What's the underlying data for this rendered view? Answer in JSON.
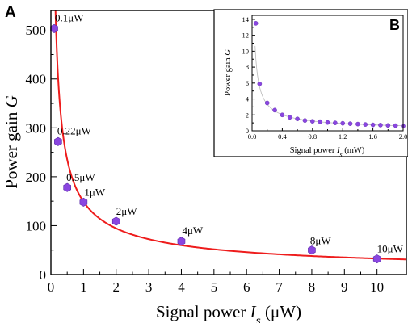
{
  "panel_labels": {
    "main": "A",
    "inset": "B"
  },
  "colors": {
    "fit_line": "#ee1c1c",
    "marker": "#8a46e0",
    "marker_edge": "#5b2aa8",
    "inset_fit": "#b9b9b9",
    "axes": "#000000"
  },
  "chart_data": [
    {
      "type": "scatter",
      "panel": "A",
      "xlabel": "Signal power I_s (μW)",
      "ylabel": "Power gain G",
      "xlim": [
        0,
        10.9
      ],
      "ylim": [
        0,
        540
      ],
      "xticks": [
        "0",
        "1",
        "2",
        "3",
        "4",
        "5",
        "6",
        "7",
        "8",
        "9",
        "10"
      ],
      "yticks": [
        "0",
        "100",
        "200",
        "300",
        "400",
        "500"
      ],
      "marker": "hexagon",
      "series": [
        {
          "x": [
            0.1,
            0.22,
            0.5,
            1,
            2,
            4,
            8,
            10
          ],
          "y": [
            503,
            272,
            178,
            148,
            109,
            68,
            50,
            32
          ]
        }
      ],
      "annotations": [
        "0.1μW",
        "0.22μW",
        "0.5μW",
        "1μW",
        "2μW",
        "4μW",
        "8μW",
        "10μW"
      ],
      "fit": {
        "type": "power",
        "a": 149,
        "b": -0.658
      }
    },
    {
      "type": "scatter",
      "panel": "B",
      "xlabel": "Signal power I_s (mW)",
      "ylabel": "Power gain G",
      "xlim": [
        0,
        2.0
      ],
      "ylim": [
        0,
        14.5
      ],
      "xticks": [
        "0.0",
        "0.4",
        "0.8",
        "1.2",
        "1.6",
        "2.0"
      ],
      "yticks": [
        "0",
        "2",
        "4",
        "6",
        "8",
        "10",
        "12",
        "14"
      ],
      "marker": "circle",
      "series": [
        {
          "x": [
            0.05,
            0.1,
            0.2,
            0.3,
            0.4,
            0.5,
            0.6,
            0.7,
            0.8,
            0.9,
            1.0,
            1.1,
            1.2,
            1.3,
            1.4,
            1.5,
            1.6,
            1.7,
            1.8,
            1.9,
            2.0
          ],
          "y": [
            13.5,
            5.9,
            3.5,
            2.6,
            2.0,
            1.7,
            1.5,
            1.3,
            1.2,
            1.15,
            1.05,
            1.0,
            0.95,
            0.9,
            0.85,
            0.8,
            0.75,
            0.72,
            0.68,
            0.65,
            0.6
          ]
        }
      ],
      "fit": {
        "type": "power",
        "a": 1.05,
        "b": -0.72
      }
    }
  ]
}
